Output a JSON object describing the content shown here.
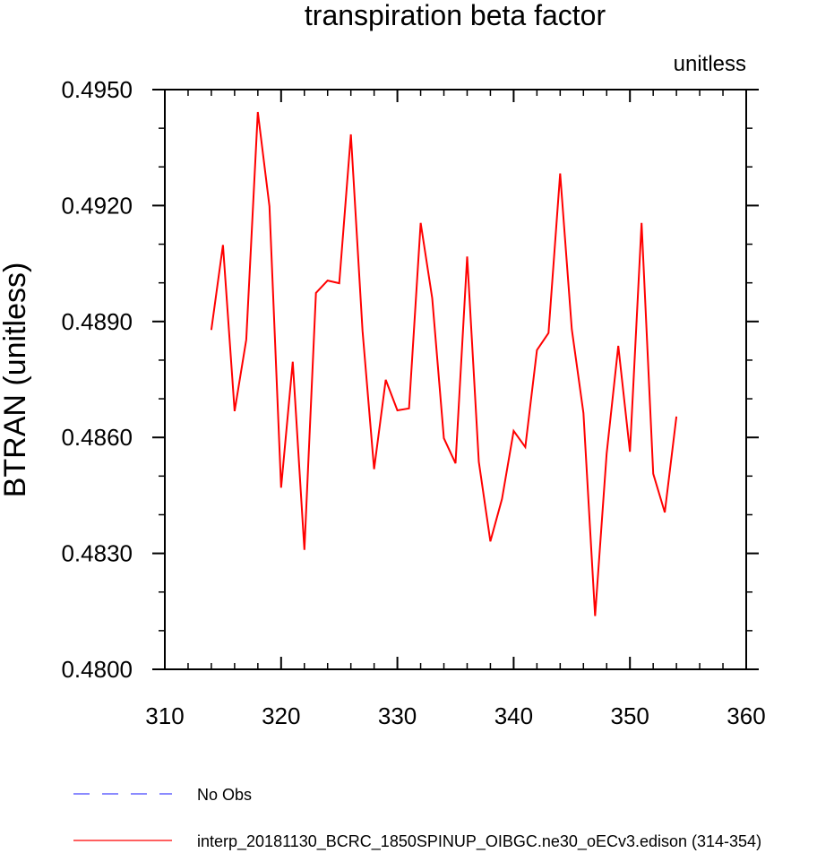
{
  "chart_data": {
    "type": "line",
    "title": "transpiration beta factor",
    "units_label": "unitless",
    "xlabel": "",
    "ylabel": "BTRAN  (unitless)",
    "xlim": [
      310,
      360
    ],
    "ylim": [
      0.48,
      0.495
    ],
    "x_ticks": [
      310,
      320,
      330,
      340,
      350,
      360
    ],
    "x_tick_labels": [
      "310",
      "320",
      "330",
      "340",
      "350",
      "360"
    ],
    "y_ticks": [
      0.48,
      0.483,
      0.486,
      0.489,
      0.492,
      0.495
    ],
    "y_tick_labels": [
      "0.4800",
      "0.4830",
      "0.4860",
      "0.4890",
      "0.4920",
      "0.4950"
    ],
    "grid": false,
    "legend_position": "bottom",
    "legend": [
      {
        "name": "No Obs",
        "color": "#4444ff",
        "style": "dashed"
      },
      {
        "name": "interp_20181130_BCRC_1850SPINUP_OIBGC.ne30_oECv3.edison (314-354)",
        "color": "#ff0000",
        "style": "solid"
      }
    ],
    "series": [
      {
        "name": "interp_20181130_BCRC_1850SPINUP_OIBGC.ne30_oECv3.edison (314-354)",
        "color": "#ff0000",
        "x": [
          314,
          315,
          316,
          317,
          318,
          319,
          320,
          321,
          322,
          323,
          324,
          325,
          326,
          327,
          328,
          329,
          330,
          331,
          332,
          333,
          334,
          335,
          336,
          337,
          338,
          339,
          340,
          341,
          342,
          343,
          344,
          345,
          346,
          347,
          348,
          349,
          350,
          351,
          352,
          353,
          354
        ],
        "values": [
          0.48878,
          0.49098,
          0.48668,
          0.48853,
          0.49442,
          0.49198,
          0.4847,
          0.48796,
          0.48309,
          0.48974,
          0.49006,
          0.48999,
          0.49384,
          0.48876,
          0.48518,
          0.48749,
          0.4867,
          0.48675,
          0.49155,
          0.4896,
          0.48598,
          0.48533,
          0.49068,
          0.48537,
          0.48331,
          0.48441,
          0.48617,
          0.48575,
          0.48826,
          0.4887,
          0.49283,
          0.4888,
          0.48663,
          0.48138,
          0.48558,
          0.48837,
          0.48563,
          0.49155,
          0.48506,
          0.48406,
          0.48654
        ]
      }
    ]
  }
}
